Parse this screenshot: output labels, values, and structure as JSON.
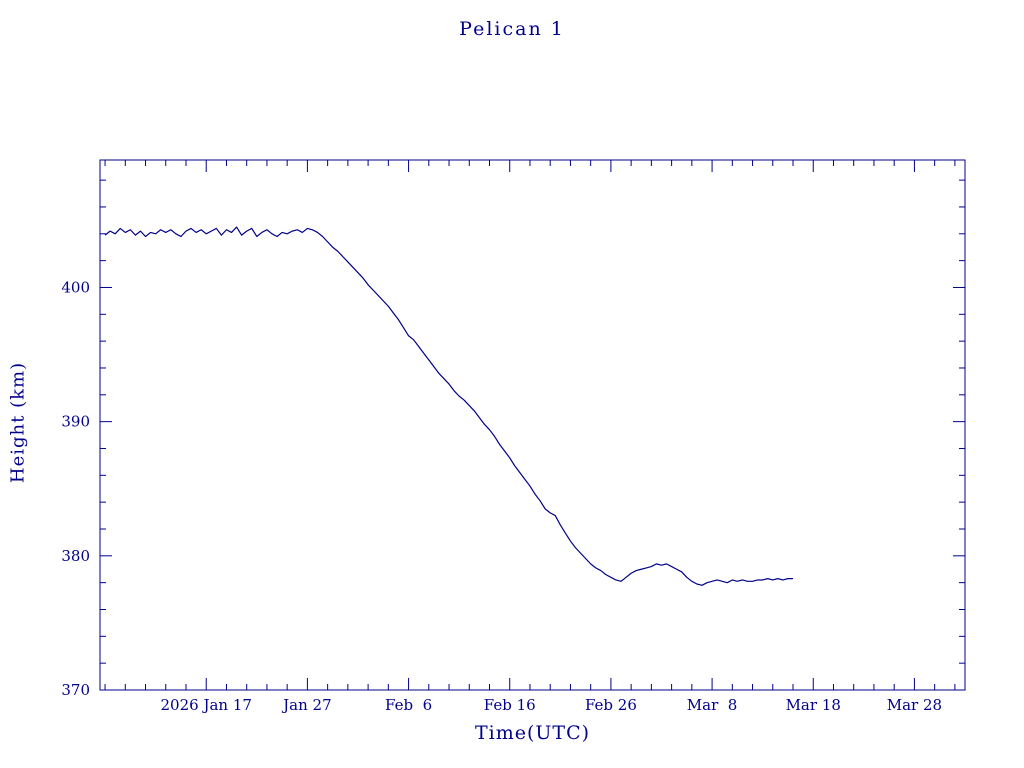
{
  "page": {
    "background": "#ffffff"
  },
  "chart_data": {
    "type": "line",
    "title": "Pelican 1",
    "xlabel": "Time(UTC)",
    "ylabel": "Height (km)",
    "line_color": "#00008b",
    "axis_color": "#00008b",
    "grid": false,
    "legend": "none",
    "x_unit": "day_of_year_2026",
    "xlim": [
      6.5,
      92
    ],
    "ylim": [
      370,
      409.5
    ],
    "x_ticks": [
      {
        "value": 17,
        "label": "2026 Jan 17"
      },
      {
        "value": 27,
        "label": "Jan 27"
      },
      {
        "value": 37,
        "label": "Feb  6"
      },
      {
        "value": 47,
        "label": "Feb 16"
      },
      {
        "value": 57,
        "label": "Feb 26"
      },
      {
        "value": 67,
        "label": "Mar  8"
      },
      {
        "value": 77,
        "label": "Mar 18"
      },
      {
        "value": 87,
        "label": "Mar 28"
      }
    ],
    "x_minor_step": 2,
    "y_ticks": [
      {
        "value": 370,
        "label": "370"
      },
      {
        "value": 380,
        "label": "380"
      },
      {
        "value": 390,
        "label": "390"
      },
      {
        "value": 400,
        "label": "400"
      }
    ],
    "y_minor_step": 2,
    "series": [
      {
        "name": "height_km",
        "points": [
          [
            7,
            403.9
          ],
          [
            7.5,
            404.2
          ],
          [
            8,
            404.0
          ],
          [
            8.5,
            404.4
          ],
          [
            9,
            404.1
          ],
          [
            9.5,
            404.3
          ],
          [
            10,
            403.9
          ],
          [
            10.5,
            404.2
          ],
          [
            11,
            403.8
          ],
          [
            11.5,
            404.1
          ],
          [
            12,
            404.0
          ],
          [
            12.5,
            404.3
          ],
          [
            13,
            404.1
          ],
          [
            13.5,
            404.3
          ],
          [
            14,
            404.0
          ],
          [
            14.5,
            403.8
          ],
          [
            15,
            404.2
          ],
          [
            15.5,
            404.4
          ],
          [
            16,
            404.1
          ],
          [
            16.5,
            404.3
          ],
          [
            17,
            404.0
          ],
          [
            17.5,
            404.2
          ],
          [
            18,
            404.4
          ],
          [
            18.5,
            403.9
          ],
          [
            19,
            404.3
          ],
          [
            19.5,
            404.1
          ],
          [
            20,
            404.5
          ],
          [
            20.5,
            403.9
          ],
          [
            21,
            404.2
          ],
          [
            21.5,
            404.4
          ],
          [
            22,
            403.8
          ],
          [
            22.5,
            404.1
          ],
          [
            23,
            404.3
          ],
          [
            23.5,
            404.0
          ],
          [
            24,
            403.8
          ],
          [
            24.5,
            404.1
          ],
          [
            25,
            404.0
          ],
          [
            25.5,
            404.2
          ],
          [
            26,
            404.3
          ],
          [
            26.5,
            404.1
          ],
          [
            27,
            404.4
          ],
          [
            27.5,
            404.3
          ],
          [
            28,
            404.1
          ],
          [
            28.5,
            403.8
          ],
          [
            29,
            403.4
          ],
          [
            29.5,
            403.0
          ],
          [
            30,
            402.7
          ],
          [
            30.5,
            402.3
          ],
          [
            31,
            401.9
          ],
          [
            31.5,
            401.5
          ],
          [
            32,
            401.1
          ],
          [
            32.5,
            400.7
          ],
          [
            33,
            400.2
          ],
          [
            33.5,
            399.8
          ],
          [
            34,
            399.4
          ],
          [
            34.5,
            399.0
          ],
          [
            35,
            398.6
          ],
          [
            35.5,
            398.1
          ],
          [
            36,
            397.6
          ],
          [
            36.5,
            397.0
          ],
          [
            37,
            396.4
          ],
          [
            37.5,
            396.1
          ],
          [
            38,
            395.6
          ],
          [
            38.5,
            395.1
          ],
          [
            39,
            394.6
          ],
          [
            39.5,
            394.1
          ],
          [
            40,
            393.6
          ],
          [
            40.5,
            393.2
          ],
          [
            41,
            392.8
          ],
          [
            41.5,
            392.3
          ],
          [
            42,
            391.9
          ],
          [
            42.5,
            391.6
          ],
          [
            43,
            391.2
          ],
          [
            43.5,
            390.8
          ],
          [
            44,
            390.3
          ],
          [
            44.5,
            389.8
          ],
          [
            45,
            389.4
          ],
          [
            45.5,
            388.9
          ],
          [
            46,
            388.3
          ],
          [
            46.5,
            387.8
          ],
          [
            47,
            387.3
          ],
          [
            47.5,
            386.7
          ],
          [
            48,
            386.2
          ],
          [
            48.5,
            385.7
          ],
          [
            49,
            385.2
          ],
          [
            49.5,
            384.6
          ],
          [
            50,
            384.1
          ],
          [
            50.5,
            383.5
          ],
          [
            51,
            383.2
          ],
          [
            51.5,
            383.0
          ],
          [
            52,
            382.3
          ],
          [
            52.5,
            381.7
          ],
          [
            53,
            381.1
          ],
          [
            53.5,
            380.6
          ],
          [
            54,
            380.2
          ],
          [
            54.5,
            379.8
          ],
          [
            55,
            379.4
          ],
          [
            55.5,
            379.1
          ],
          [
            56,
            378.9
          ],
          [
            56.5,
            378.6
          ],
          [
            57,
            378.4
          ],
          [
            57.5,
            378.2
          ],
          [
            58,
            378.1
          ],
          [
            58.5,
            378.4
          ],
          [
            59,
            378.7
          ],
          [
            59.5,
            378.9
          ],
          [
            60,
            379.0
          ],
          [
            60.5,
            379.1
          ],
          [
            61,
            379.2
          ],
          [
            61.5,
            379.4
          ],
          [
            62,
            379.3
          ],
          [
            62.5,
            379.4
          ],
          [
            63,
            379.2
          ],
          [
            63.5,
            379.0
          ],
          [
            64,
            378.8
          ],
          [
            64.5,
            378.4
          ],
          [
            65,
            378.1
          ],
          [
            65.5,
            377.9
          ],
          [
            66,
            377.8
          ],
          [
            66.5,
            378.0
          ],
          [
            67,
            378.1
          ],
          [
            67.5,
            378.2
          ],
          [
            68,
            378.1
          ],
          [
            68.5,
            378.0
          ],
          [
            69,
            378.2
          ],
          [
            69.5,
            378.1
          ],
          [
            70,
            378.2
          ],
          [
            70.5,
            378.1
          ],
          [
            71,
            378.1
          ],
          [
            71.5,
            378.2
          ],
          [
            72,
            378.2
          ],
          [
            72.5,
            378.3
          ],
          [
            73,
            378.2
          ],
          [
            73.5,
            378.3
          ],
          [
            74,
            378.2
          ],
          [
            74.5,
            378.3
          ],
          [
            75,
            378.3
          ]
        ]
      }
    ]
  }
}
